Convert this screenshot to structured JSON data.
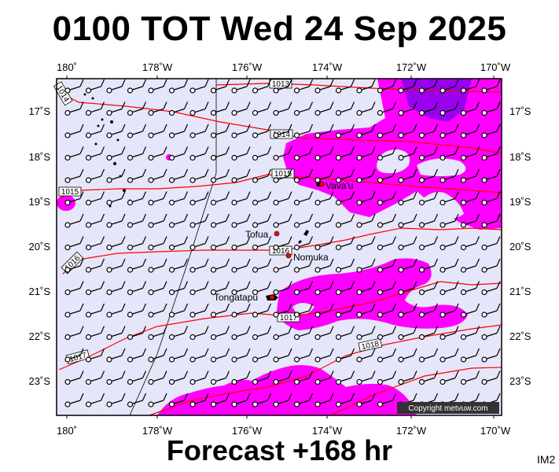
{
  "title": "0100 TOT Wed 24 Sep 2025",
  "footer": "Forecast +168 hr",
  "image_code": "IM2",
  "copyright": "Copyright metvuw.com",
  "lon_labels": [
    "180˚",
    "178˚W",
    "176˚W",
    "174˚W",
    "172˚W",
    "170˚W"
  ],
  "lat_labels": [
    "17˚S",
    "18˚S",
    "19˚S",
    "20˚S",
    "21˚S",
    "22˚S",
    "23˚S"
  ],
  "isobar_labels": [
    "1013",
    "1014",
    "1014",
    "1015",
    "1015",
    "1016",
    "1016",
    "1017",
    "1017",
    "1018"
  ],
  "places": [
    "Vava'u",
    "Tofua",
    "Nomuka",
    "Tongatapu"
  ],
  "colors": {
    "ocean": "#e6e6fa",
    "rain_light": "#ff00ff",
    "rain_heavy": "#9900ee",
    "isobar": "#ff0000",
    "island_marker": "#ff0000"
  }
}
